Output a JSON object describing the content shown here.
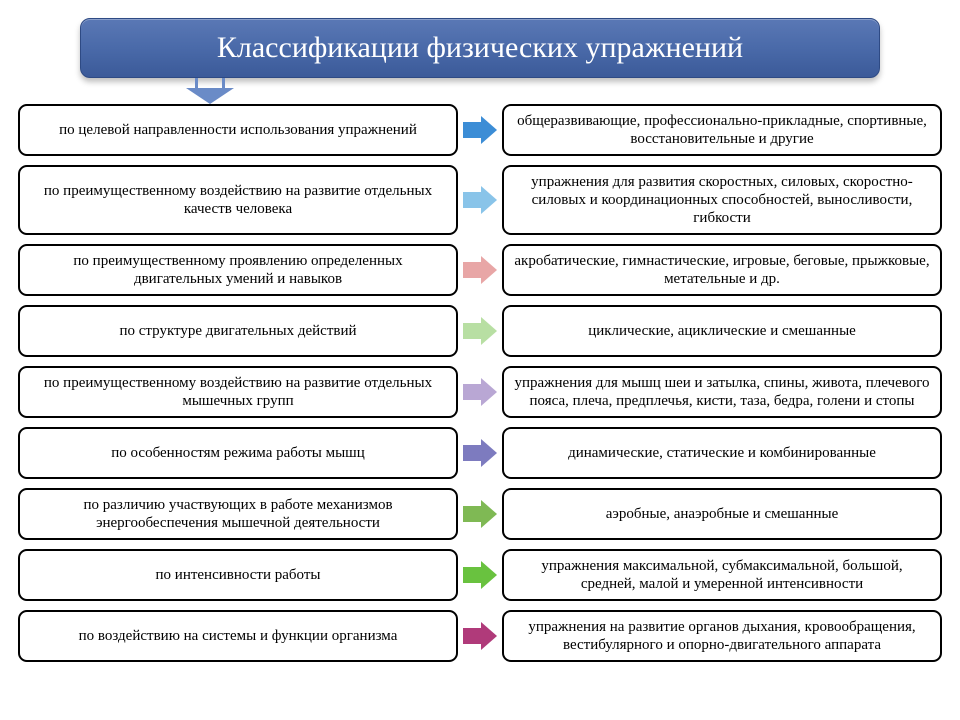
{
  "title": "Классификации физических упражнений",
  "header": {
    "background_gradient": [
      "#5a78b5",
      "#3b5a99"
    ],
    "text_color": "#ffffff",
    "fontsize": 30
  },
  "connector_color": "#6a8bc7",
  "cell_style": {
    "border_color": "#000000",
    "border_width": 2,
    "border_radius": 9,
    "background": "#ffffff",
    "fontsize": 15
  },
  "rows": [
    {
      "left": "по целевой направленности использования упражнений",
      "right": "общеразвивающие, профессионально-прикладные, спортивные, восстановительные и другие",
      "arrow_color": "#3c8dd6"
    },
    {
      "left": "по преимущественному воздействию на развитие отдельных качеств человека",
      "right": "упражнения для развития скоростных, силовых, скоростно-силовых и координационных способностей, выносливости, гибкости",
      "arrow_color": "#89c4e9"
    },
    {
      "left": "по преимущественному проявлению определенных двигательных умений и навыков",
      "right": "акробатические, гимнастические, игровые, беговые, прыжковые, метательные и др.",
      "arrow_color": "#e8a6a6"
    },
    {
      "left": "по структуре двигательных действий",
      "right": "циклические, ациклические и смешанные",
      "arrow_color": "#b8dfa3"
    },
    {
      "left": "по преимущественному воздействию на развитие отдельных мышечных групп",
      "right": "упражнения для мышц шеи и затылка, спины, живота, плечевого пояса, плеча, предплечья, кисти, таза, бедра, голени и стопы",
      "arrow_color": "#b9a7d4"
    },
    {
      "left": "по особенностям режима работы мышц",
      "right": "динамические, статические и комбинированные",
      "arrow_color": "#7d7bbf"
    },
    {
      "left": "по различию участвующих в работе механизмов энергообеспечения мышечной деятельности",
      "right": "аэробные, анаэробные и смешанные",
      "arrow_color": "#7fb954"
    },
    {
      "left": "по интенсивности работы",
      "right": "упражнения максимальной, субмаксимальной, большой,  средней,  малой и умеренной интенсивности",
      "arrow_color": "#69c23f"
    },
    {
      "left": "по воздействию на системы и функции организма",
      "right": "упражнения на развитие органов дыхания, кровообращения, вестибулярного и опорно-двигательного аппарата",
      "arrow_color": "#b03a7a"
    }
  ]
}
